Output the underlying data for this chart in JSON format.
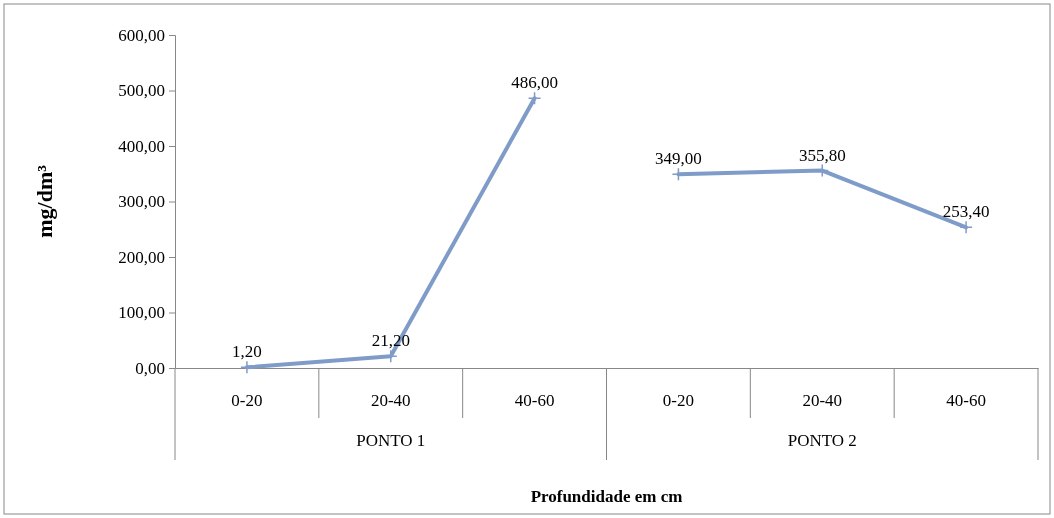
{
  "chart_data": {
    "type": "line",
    "xlabel": "Profundidade em cm",
    "ylabel": "mg/dm³",
    "categories": [
      "0-20",
      "20-40",
      "40-60",
      "0-20",
      "20-40",
      "40-60"
    ],
    "annotations": [
      "PONTO 1",
      "PONTO 2"
    ],
    "series": [
      {
        "color": "#7f9cc9",
        "values": [
          1.2,
          21.2,
          486,
          null,
          null,
          null
        ],
        "value_labels": [
          "1,20",
          "21,20",
          "486,00",
          null,
          null,
          null
        ]
      },
      {
        "color": "#7f9cc9",
        "values": [
          null,
          null,
          null,
          349,
          355.8,
          253.4
        ],
        "value_labels": [
          null,
          null,
          null,
          "349,00",
          "355,80",
          "253,40"
        ]
      }
    ],
    "ylim": [
      0,
      600
    ],
    "yticks": [
      {
        "value": 0,
        "label": "0,00"
      },
      {
        "value": 100,
        "label": "100,00"
      },
      {
        "value": 200,
        "label": "200,00"
      },
      {
        "value": 300,
        "label": "300,00"
      },
      {
        "value": 400,
        "label": "400,00"
      },
      {
        "value": 500,
        "label": "500,00"
      },
      {
        "value": 600,
        "label": "600,00"
      }
    ],
    "marker": "cross",
    "line_style": "solid",
    "grid": false
  }
}
